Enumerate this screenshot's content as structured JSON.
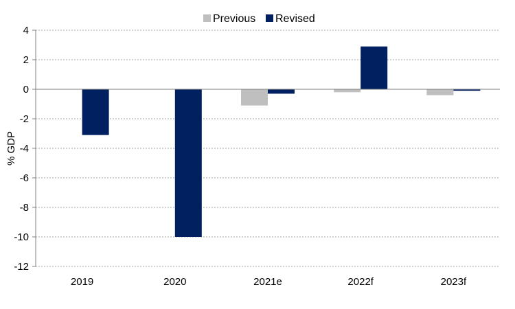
{
  "chart_data": {
    "type": "bar",
    "categories": [
      "2019",
      "2020",
      "2021e",
      "2022f",
      "2023f"
    ],
    "series": [
      {
        "name": "Previous",
        "color": "#bfbfbf",
        "values": [
          0,
          0,
          -1.1,
          -0.2,
          -0.4
        ]
      },
      {
        "name": "Revised",
        "color": "#002060",
        "values": [
          -3.1,
          -10.0,
          -0.3,
          2.9,
          -0.1
        ]
      }
    ],
    "ylabel": "% GDP",
    "ylim": [
      -12,
      4
    ],
    "yticks": [
      4,
      2,
      0,
      -2,
      -4,
      -6,
      -8,
      -10,
      -12
    ],
    "grid": true,
    "legend_position": "top-center"
  }
}
